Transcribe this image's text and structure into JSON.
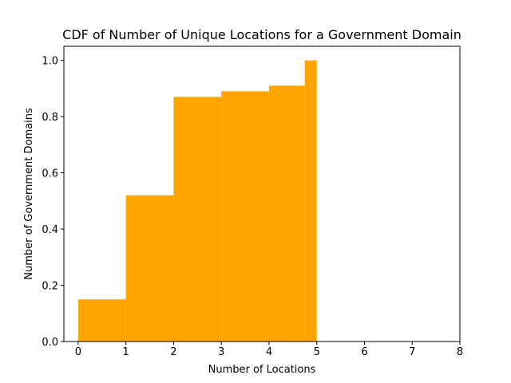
{
  "chart_data": {
    "type": "bar",
    "title": "CDF of Number of Unique Locations for a Government Domain",
    "xlabel": "Number of Locations",
    "ylabel": "Number of Government Domains",
    "xlim": [
      -0.3,
      8
    ],
    "ylim": [
      0,
      1.05
    ],
    "xticks": [
      "0",
      "1",
      "2",
      "3",
      "4",
      "5",
      "6",
      "7",
      "8"
    ],
    "yticks": [
      "0.0",
      "0.2",
      "0.4",
      "0.6",
      "0.8",
      "1.0"
    ],
    "bars": [
      {
        "x0": 0,
        "x1": 1,
        "value": 0.15
      },
      {
        "x0": 1,
        "x1": 2,
        "value": 0.52
      },
      {
        "x0": 2,
        "x1": 3,
        "value": 0.87
      },
      {
        "x0": 3,
        "x1": 4,
        "value": 0.89
      },
      {
        "x0": 4,
        "x1": 4.75,
        "value": 0.91
      },
      {
        "x0": 4.75,
        "x1": 5,
        "value": 1.0
      }
    ],
    "bar_color": "#ffa500",
    "grid": false,
    "legend": "none"
  }
}
